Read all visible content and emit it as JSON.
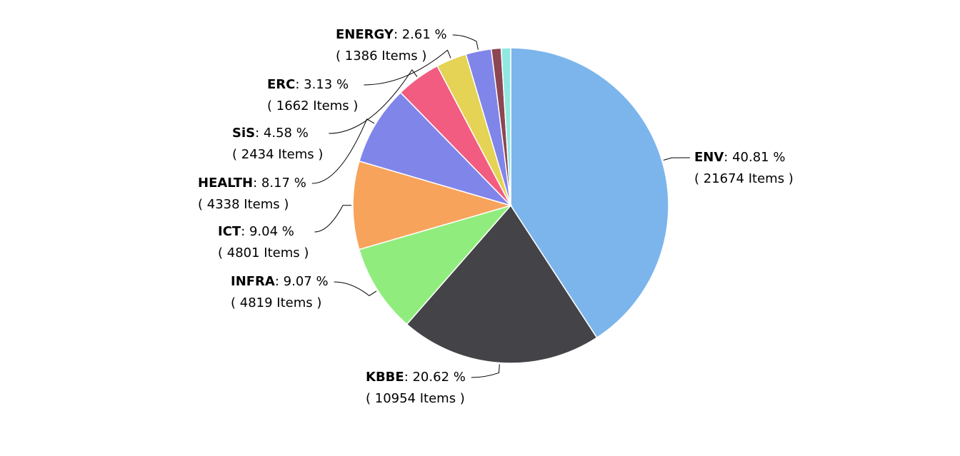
{
  "chart_data": {
    "type": "pie",
    "categories": [
      "ENV",
      "KBBE",
      "INFRA",
      "ICT",
      "HEALTH",
      "SiS",
      "ERC",
      "ENERGY",
      null,
      null
    ],
    "values": [
      40.81,
      20.62,
      9.07,
      9.04,
      8.17,
      4.58,
      3.13,
      2.61,
      1.0,
      0.97
    ],
    "value_labels": [
      "40.81 %",
      "20.62 %",
      "9.07 %",
      "9.04 %",
      "8.17 %",
      "4.58 %",
      "3.13 %",
      "2.61 %",
      null,
      null
    ],
    "label_separator": ": ",
    "items": [
      21674,
      10954,
      4819,
      4801,
      4338,
      2434,
      1662,
      1386,
      null,
      null
    ],
    "item_labels": [
      "( 21674 Items )",
      "( 10954 Items )",
      "( 4819 Items )",
      "( 4801 Items )",
      "( 4338 Items )",
      "( 2434 Items )",
      "( 1662 Items )",
      "( 1386 Items )",
      null,
      null
    ],
    "colors": [
      "#7cb5ec",
      "#434348",
      "#90ed7d",
      "#f7a35c",
      "#8085e9",
      "#f15c80",
      "#e4d354",
      "#8085e9",
      "#8d4653",
      "#91e8e1"
    ]
  }
}
